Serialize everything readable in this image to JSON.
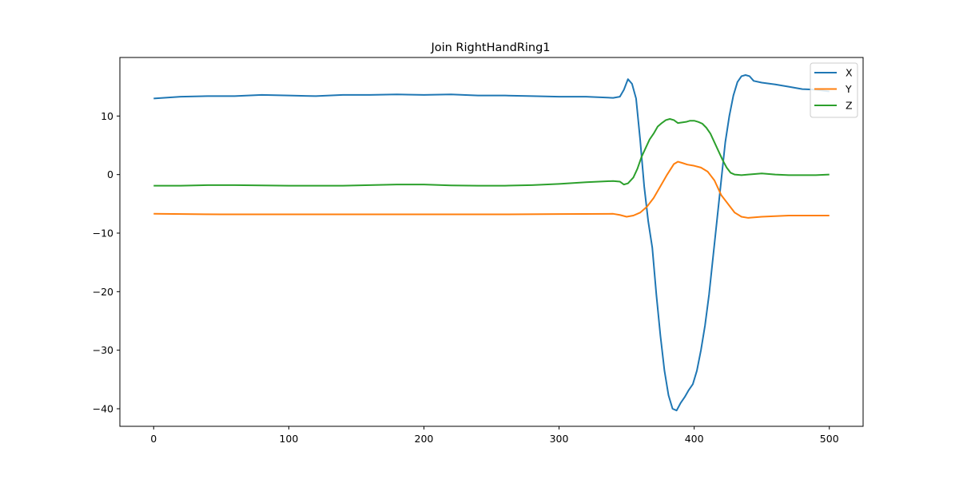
{
  "chart_data": {
    "type": "line",
    "title": "Join RightHandRing1",
    "xlabel": "",
    "ylabel": "",
    "xlim": [
      -25,
      525
    ],
    "ylim": [
      -43,
      20
    ],
    "xticks": [
      0,
      100,
      200,
      300,
      400,
      500
    ],
    "yticks": [
      -40,
      -30,
      -20,
      -10,
      0,
      10
    ],
    "xtick_labels": [
      "0",
      "100",
      "200",
      "300",
      "400",
      "500"
    ],
    "ytick_labels": [
      "−40",
      "−30",
      "−20",
      "−10",
      "0",
      "10"
    ],
    "grid": false,
    "legend_position": "top-right",
    "series": [
      {
        "name": "X",
        "color": "#1f77b4",
        "points": [
          [
            0,
            13.0
          ],
          [
            20,
            13.3
          ],
          [
            40,
            13.4
          ],
          [
            60,
            13.4
          ],
          [
            80,
            13.6
          ],
          [
            100,
            13.5
          ],
          [
            120,
            13.4
          ],
          [
            140,
            13.6
          ],
          [
            160,
            13.6
          ],
          [
            180,
            13.7
          ],
          [
            200,
            13.6
          ],
          [
            220,
            13.7
          ],
          [
            240,
            13.5
          ],
          [
            260,
            13.5
          ],
          [
            280,
            13.4
          ],
          [
            300,
            13.3
          ],
          [
            320,
            13.3
          ],
          [
            340,
            13.1
          ],
          [
            345,
            13.3
          ],
          [
            348,
            14.5
          ],
          [
            351,
            16.3
          ],
          [
            354,
            15.5
          ],
          [
            357,
            13.0
          ],
          [
            360,
            6.0
          ],
          [
            363,
            -2.0
          ],
          [
            366,
            -8.0
          ],
          [
            369,
            -12.5
          ],
          [
            372,
            -20.5
          ],
          [
            375,
            -27.5
          ],
          [
            378,
            -33.5
          ],
          [
            381,
            -37.7
          ],
          [
            384,
            -40.0
          ],
          [
            387,
            -40.3
          ],
          [
            390,
            -39.0
          ],
          [
            393,
            -38.0
          ],
          [
            396,
            -36.8
          ],
          [
            399,
            -35.8
          ],
          [
            402,
            -33.5
          ],
          [
            405,
            -30.0
          ],
          [
            408,
            -25.8
          ],
          [
            411,
            -20.5
          ],
          [
            414,
            -14.0
          ],
          [
            417,
            -7.5
          ],
          [
            420,
            -1.0
          ],
          [
            423,
            5.5
          ],
          [
            426,
            10.0
          ],
          [
            429,
            13.5
          ],
          [
            432,
            15.8
          ],
          [
            435,
            16.8
          ],
          [
            438,
            17.0
          ],
          [
            441,
            16.8
          ],
          [
            444,
            16.0
          ],
          [
            450,
            15.7
          ],
          [
            460,
            15.4
          ],
          [
            470,
            15.0
          ],
          [
            480,
            14.6
          ],
          [
            490,
            14.5
          ],
          [
            500,
            14.2
          ]
        ]
      },
      {
        "name": "Y",
        "color": "#ff7f0e",
        "points": [
          [
            0,
            -6.7
          ],
          [
            50,
            -6.8
          ],
          [
            100,
            -6.8
          ],
          [
            150,
            -6.8
          ],
          [
            200,
            -6.8
          ],
          [
            250,
            -6.8
          ],
          [
            300,
            -6.75
          ],
          [
            340,
            -6.7
          ],
          [
            345,
            -6.9
          ],
          [
            350,
            -7.2
          ],
          [
            355,
            -7.0
          ],
          [
            360,
            -6.5
          ],
          [
            365,
            -5.5
          ],
          [
            370,
            -4.0
          ],
          [
            375,
            -2.0
          ],
          [
            380,
            0.0
          ],
          [
            385,
            1.8
          ],
          [
            388,
            2.2
          ],
          [
            391,
            2.0
          ],
          [
            395,
            1.7
          ],
          [
            400,
            1.5
          ],
          [
            405,
            1.2
          ],
          [
            410,
            0.5
          ],
          [
            415,
            -1.0
          ],
          [
            420,
            -3.5
          ],
          [
            425,
            -5.0
          ],
          [
            430,
            -6.5
          ],
          [
            435,
            -7.2
          ],
          [
            440,
            -7.4
          ],
          [
            450,
            -7.2
          ],
          [
            460,
            -7.1
          ],
          [
            470,
            -7.0
          ],
          [
            480,
            -7.0
          ],
          [
            490,
            -7.0
          ],
          [
            500,
            -7.0
          ]
        ]
      },
      {
        "name": "Z",
        "color": "#2ca02c",
        "points": [
          [
            0,
            -1.9
          ],
          [
            20,
            -1.9
          ],
          [
            40,
            -1.8
          ],
          [
            60,
            -1.8
          ],
          [
            80,
            -1.85
          ],
          [
            100,
            -1.9
          ],
          [
            120,
            -1.9
          ],
          [
            140,
            -1.9
          ],
          [
            160,
            -1.8
          ],
          [
            180,
            -1.7
          ],
          [
            200,
            -1.7
          ],
          [
            220,
            -1.85
          ],
          [
            240,
            -1.9
          ],
          [
            260,
            -1.9
          ],
          [
            280,
            -1.8
          ],
          [
            300,
            -1.6
          ],
          [
            320,
            -1.3
          ],
          [
            340,
            -1.1
          ],
          [
            345,
            -1.2
          ],
          [
            348,
            -1.7
          ],
          [
            351,
            -1.5
          ],
          [
            355,
            -0.5
          ],
          [
            358,
            1.0
          ],
          [
            361,
            3.0
          ],
          [
            364,
            4.5
          ],
          [
            367,
            6.0
          ],
          [
            370,
            7.0
          ],
          [
            373,
            8.2
          ],
          [
            376,
            8.8
          ],
          [
            379,
            9.3
          ],
          [
            382,
            9.5
          ],
          [
            385,
            9.3
          ],
          [
            388,
            8.8
          ],
          [
            391,
            8.9
          ],
          [
            394,
            9.0
          ],
          [
            397,
            9.2
          ],
          [
            400,
            9.2
          ],
          [
            403,
            9.0
          ],
          [
            406,
            8.7
          ],
          [
            409,
            8.0
          ],
          [
            412,
            7.0
          ],
          [
            415,
            5.5
          ],
          [
            418,
            4.0
          ],
          [
            421,
            2.5
          ],
          [
            424,
            1.2
          ],
          [
            427,
            0.3
          ],
          [
            430,
            0.0
          ],
          [
            435,
            -0.1
          ],
          [
            440,
            0.0
          ],
          [
            450,
            0.2
          ],
          [
            460,
            0.0
          ],
          [
            470,
            -0.1
          ],
          [
            480,
            -0.1
          ],
          [
            490,
            -0.1
          ],
          [
            500,
            0.0
          ]
        ]
      }
    ]
  }
}
